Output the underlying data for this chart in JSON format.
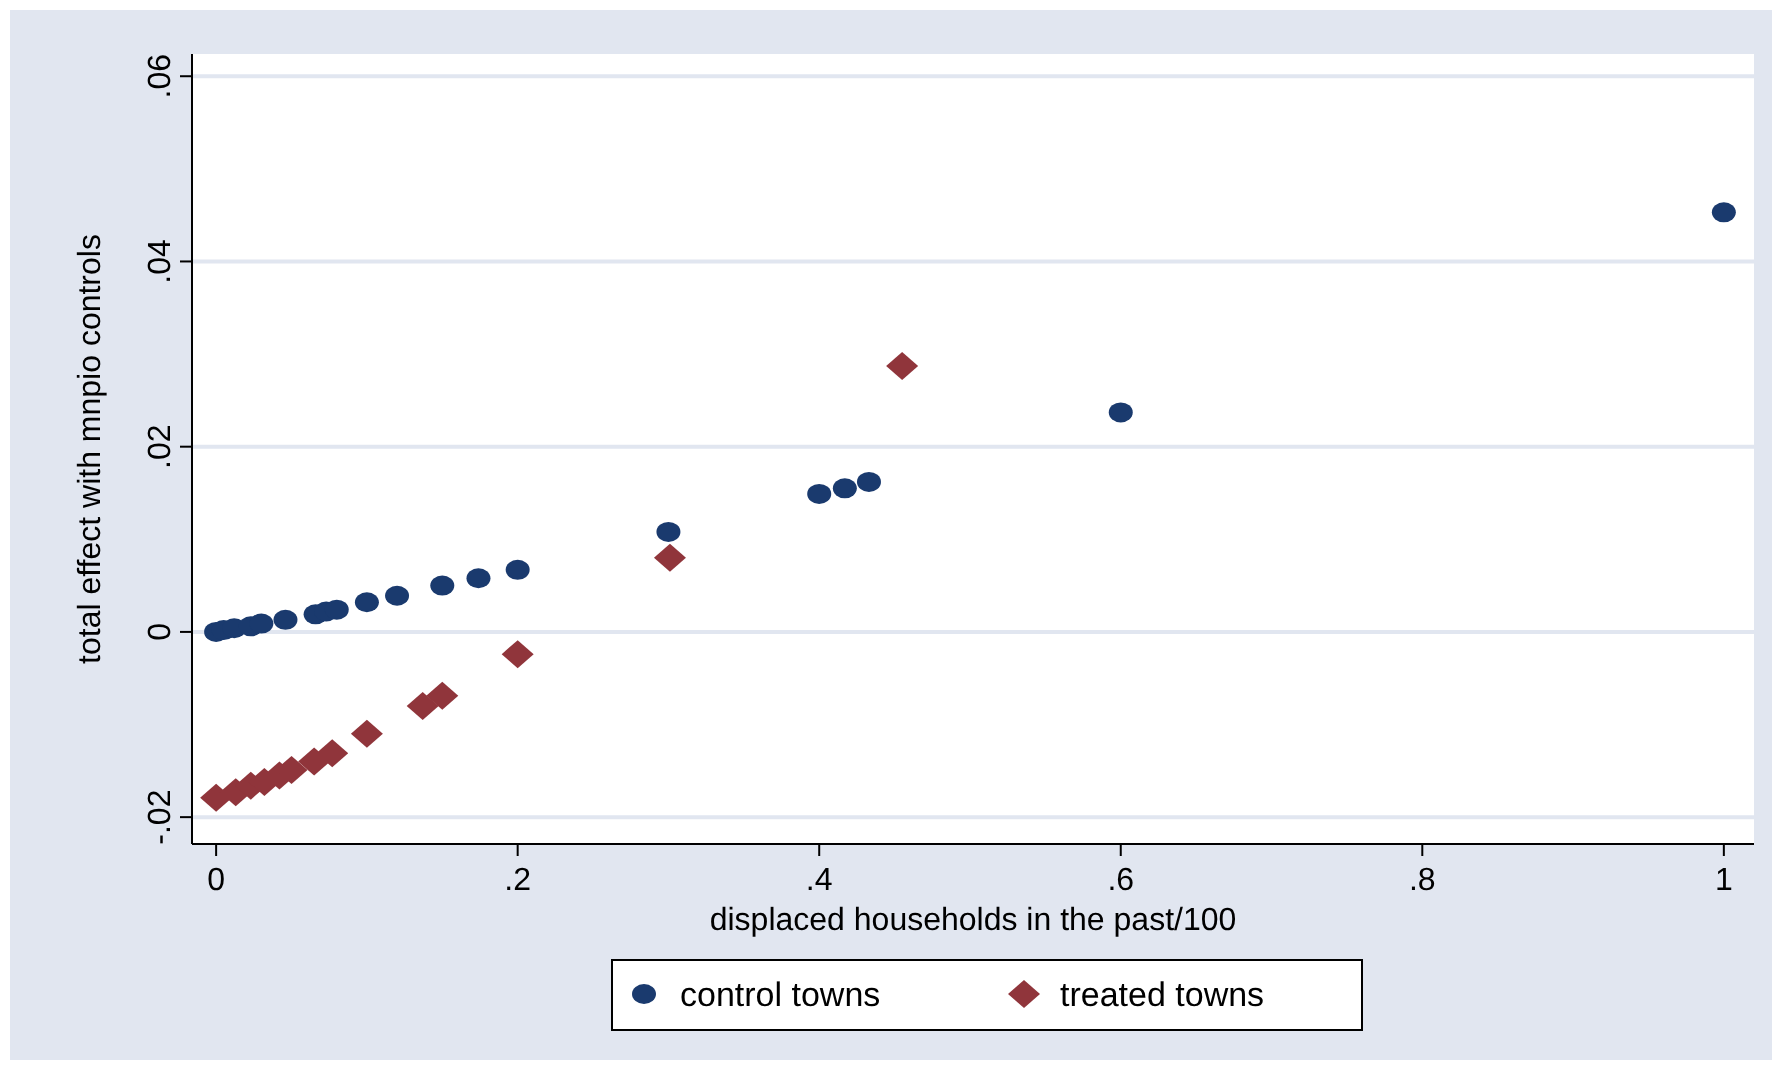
{
  "chart_data": {
    "type": "scatter",
    "xlabel": "displaced households in the past/100",
    "ylabel": "total effect with mnpio controls",
    "xlim": [
      -0.016,
      1.02
    ],
    "ylim": [
      -0.0229,
      0.0624
    ],
    "xticks": [
      0,
      {
        "value": 0.2,
        "label": ".2"
      },
      {
        "value": 0.4,
        "label": ".4"
      },
      {
        "value": 0.6,
        "label": ".6"
      },
      {
        "value": 0.8,
        "label": ".8"
      },
      1
    ],
    "yticks": [
      {
        "value": -0.02,
        "label": "-.02"
      },
      0,
      {
        "value": 0.02,
        "label": ".02"
      },
      {
        "value": 0.04,
        "label": ".04"
      },
      {
        "value": 0.06,
        "label": ".06"
      }
    ],
    "grid": "y",
    "legend": "bottom",
    "series": [
      {
        "name": "control towns",
        "color": "#1a3a6e",
        "marker": "circle",
        "x": [
          0,
          0.005,
          0.012,
          0.023,
          0.03,
          0.046,
          0.066,
          0.073,
          0.08,
          0.1,
          0.12,
          0.15,
          0.174,
          0.2,
          0.3,
          0.4,
          0.417,
          0.433,
          0.6,
          1
        ],
        "values": [
          0,
          0.0002,
          0.0004,
          0.0006,
          0.0009,
          0.0013,
          0.0019,
          0.0022,
          0.0024,
          0.0032,
          0.0039,
          0.005,
          0.0058,
          0.0067,
          0.0108,
          0.0149,
          0.0155,
          0.0162,
          0.0237,
          0.0453
        ]
      },
      {
        "name": "treated towns",
        "color": "#90353b",
        "marker": "diamond",
        "x": [
          0,
          0.013,
          0.023,
          0.032,
          0.042,
          0.05,
          0.065,
          0.077,
          0.1,
          0.137,
          0.15,
          0.2,
          0.301,
          0.455
        ],
        "values": [
          -0.0179,
          -0.0173,
          -0.0166,
          -0.0162,
          -0.0155,
          -0.0149,
          -0.014,
          -0.0131,
          -0.011,
          -0.008,
          -0.0069,
          -0.0024,
          0.008,
          0.0287
        ]
      }
    ]
  }
}
